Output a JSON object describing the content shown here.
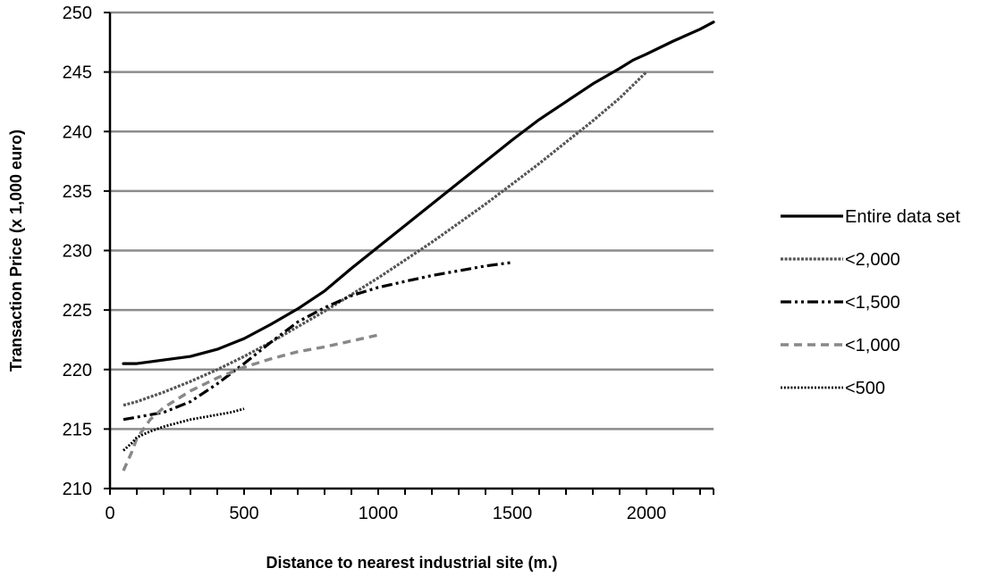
{
  "chart_data": {
    "type": "line",
    "title": "",
    "xlabel": "Distance to nearest industrial site (m.)",
    "ylabel": "Transaction Price (x 1,000 euro)",
    "xlim": [
      0,
      2250
    ],
    "ylim": [
      210,
      250
    ],
    "x_ticks": [
      0,
      500,
      1000,
      1500,
      2000
    ],
    "y_ticks": [
      210,
      215,
      220,
      225,
      230,
      235,
      240,
      245,
      250
    ],
    "grid": "horizontal",
    "legend_position": "right",
    "series": [
      {
        "name": "Entire data set",
        "style": "solid-thick",
        "color": "#000000",
        "points": [
          [
            50,
            220.5
          ],
          [
            100,
            220.5
          ],
          [
            200,
            220.8
          ],
          [
            300,
            221.1
          ],
          [
            400,
            221.7
          ],
          [
            500,
            222.6
          ],
          [
            600,
            223.8
          ],
          [
            700,
            225.1
          ],
          [
            800,
            226.6
          ],
          [
            900,
            228.5
          ],
          [
            1000,
            230.3
          ],
          [
            1100,
            232.1
          ],
          [
            1200,
            233.9
          ],
          [
            1300,
            235.7
          ],
          [
            1400,
            237.5
          ],
          [
            1500,
            239.3
          ],
          [
            1600,
            241.0
          ],
          [
            1700,
            242.5
          ],
          [
            1800,
            244.0
          ],
          [
            1900,
            245.3
          ],
          [
            1950,
            246.0
          ],
          [
            2000,
            246.5
          ],
          [
            2100,
            247.6
          ],
          [
            2200,
            248.6
          ],
          [
            2250,
            249.2
          ]
        ]
      },
      {
        "name": "<2,000",
        "style": "dense-dash",
        "color": "#555555",
        "points": [
          [
            50,
            217.0
          ],
          [
            100,
            217.3
          ],
          [
            200,
            218.1
          ],
          [
            300,
            219.0
          ],
          [
            400,
            220.0
          ],
          [
            500,
            221.1
          ],
          [
            600,
            222.3
          ],
          [
            700,
            223.6
          ],
          [
            800,
            224.9
          ],
          [
            900,
            226.3
          ],
          [
            1000,
            227.7
          ],
          [
            1100,
            229.2
          ],
          [
            1200,
            230.7
          ],
          [
            1300,
            232.3
          ],
          [
            1400,
            233.9
          ],
          [
            1500,
            235.6
          ],
          [
            1600,
            237.3
          ],
          [
            1700,
            239.1
          ],
          [
            1800,
            240.9
          ],
          [
            1900,
            242.8
          ],
          [
            2000,
            245.0
          ]
        ]
      },
      {
        "name": "<1,500",
        "style": "dash-dot-dot",
        "color": "#000000",
        "points": [
          [
            50,
            215.8
          ],
          [
            100,
            216.0
          ],
          [
            200,
            216.4
          ],
          [
            300,
            217.3
          ],
          [
            400,
            218.8
          ],
          [
            500,
            220.5
          ],
          [
            600,
            222.3
          ],
          [
            700,
            224.0
          ],
          [
            800,
            225.2
          ],
          [
            900,
            226.2
          ],
          [
            1000,
            226.9
          ],
          [
            1100,
            227.4
          ],
          [
            1200,
            227.9
          ],
          [
            1300,
            228.3
          ],
          [
            1400,
            228.7
          ],
          [
            1500,
            229.0
          ]
        ]
      },
      {
        "name": "<1,000",
        "style": "dashed-gray",
        "color": "#888888",
        "points": [
          [
            50,
            211.5
          ],
          [
            80,
            213.0
          ],
          [
            100,
            214.2
          ],
          [
            150,
            215.8
          ],
          [
            200,
            216.8
          ],
          [
            300,
            218.2
          ],
          [
            400,
            219.3
          ],
          [
            500,
            220.2
          ],
          [
            600,
            220.9
          ],
          [
            700,
            221.5
          ],
          [
            800,
            221.9
          ],
          [
            900,
            222.4
          ],
          [
            1000,
            222.9
          ]
        ]
      },
      {
        "name": "<500",
        "style": "dotted",
        "color": "#000000",
        "points": [
          [
            50,
            213.2
          ],
          [
            80,
            213.8
          ],
          [
            100,
            214.3
          ],
          [
            150,
            214.8
          ],
          [
            200,
            215.2
          ],
          [
            250,
            215.5
          ],
          [
            300,
            215.8
          ],
          [
            350,
            216.0
          ],
          [
            400,
            216.2
          ],
          [
            450,
            216.4
          ],
          [
            500,
            216.7
          ]
        ]
      }
    ]
  }
}
